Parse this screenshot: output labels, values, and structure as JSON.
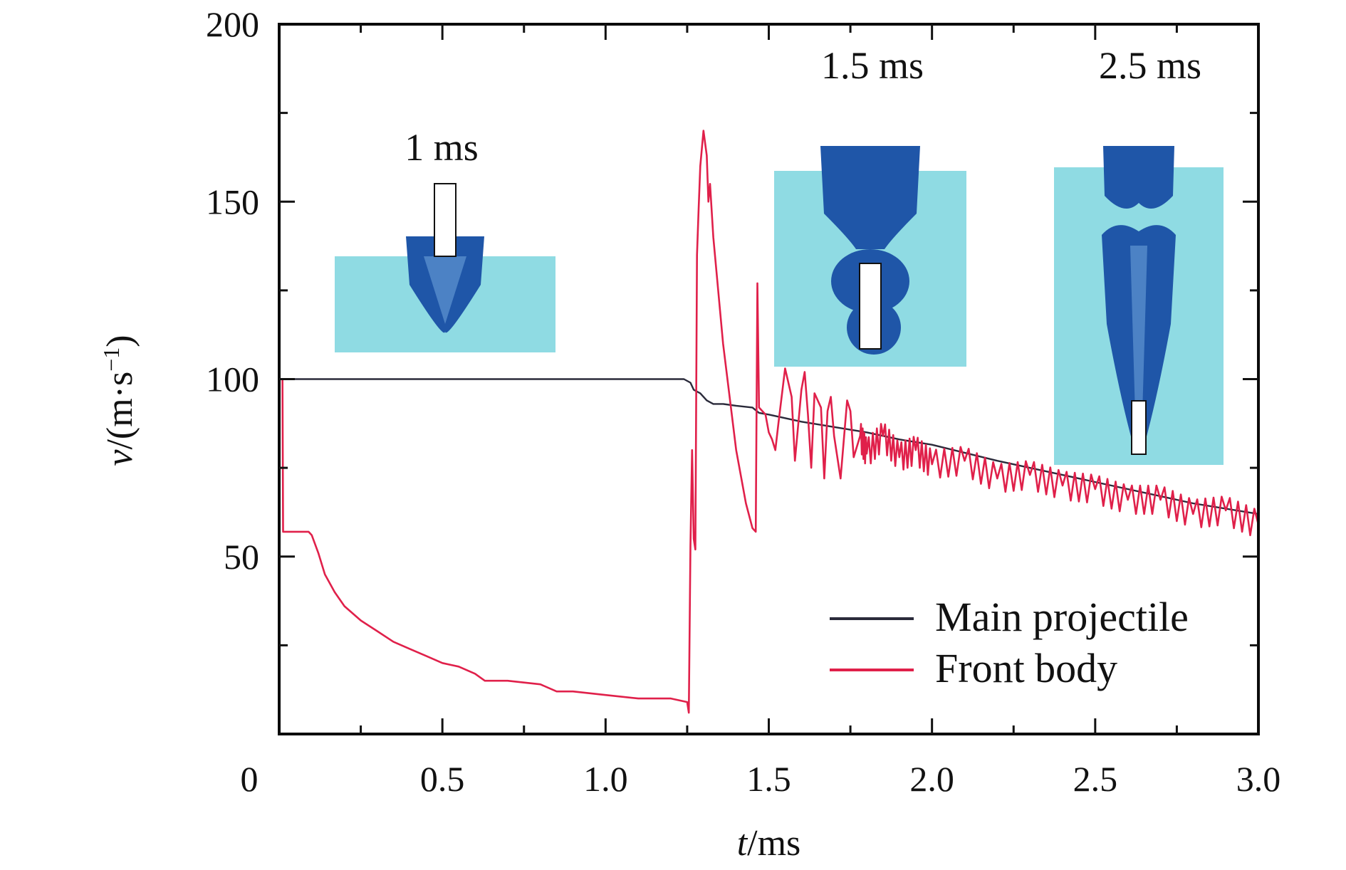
{
  "chart_data": {
    "type": "line",
    "title": "",
    "xlabel_italic": "t",
    "xlabel_rest": "/ms",
    "ylabel_italic": "v",
    "ylabel_rest": "/(m·s",
    "ylabel_sup": "−1",
    "ylabel_close": ")",
    "xlim": [
      0,
      3.0
    ],
    "ylim": [
      0,
      200
    ],
    "xticks": [
      0,
      0.5,
      1.0,
      1.5,
      2.0,
      2.5,
      3.0
    ],
    "xtick_labels": [
      "0",
      "0.5",
      "1.0",
      "1.5",
      "2.0",
      "2.5",
      "3.0"
    ],
    "xminor": [
      0.25,
      0.75,
      1.25,
      1.75,
      2.25,
      2.75
    ],
    "yticks": [
      50,
      100,
      150,
      200
    ],
    "ytick_labels": [
      "50",
      "100",
      "150",
      "200"
    ],
    "yminor": [
      25,
      75,
      125,
      175
    ],
    "origin_label": "0",
    "grid": false,
    "legend": {
      "position": "bottom-right"
    },
    "series": [
      {
        "name": "Main projectile",
        "color": "#2a2a3a",
        "x": [
          0,
          1.24,
          1.26,
          1.27,
          1.29,
          1.31,
          1.33,
          1.36,
          1.4,
          1.45,
          1.47,
          1.5,
          1.55,
          1.6,
          1.7,
          1.8,
          1.9,
          2.0,
          2.2,
          2.4,
          2.6,
          2.8,
          3.0
        ],
        "y": [
          100,
          100,
          99,
          97,
          96,
          94,
          93,
          93,
          92.5,
          92,
          90.5,
          90,
          89,
          88,
          86.5,
          85,
          83,
          81.5,
          77,
          73,
          69,
          65,
          62
        ]
      },
      {
        "name": "Front body",
        "color": "#e0204a",
        "x": [
          0.01,
          0.012,
          0.015,
          0.09,
          0.1,
          0.12,
          0.14,
          0.17,
          0.2,
          0.25,
          0.3,
          0.35,
          0.4,
          0.45,
          0.5,
          0.55,
          0.6,
          0.63,
          0.7,
          0.8,
          0.85,
          0.9,
          1.0,
          1.1,
          1.2,
          1.25,
          1.255,
          1.26,
          1.265,
          1.27,
          1.275,
          1.28,
          1.285,
          1.29,
          1.3,
          1.31,
          1.315,
          1.32,
          1.33,
          1.36,
          1.4,
          1.43,
          1.45,
          1.46,
          1.465,
          1.47,
          1.49,
          1.5,
          1.51,
          1.52,
          1.53,
          1.55,
          1.57,
          1.58,
          1.6,
          1.61,
          1.62,
          1.63,
          1.64,
          1.66,
          1.67,
          1.68,
          1.69,
          1.7,
          1.72,
          1.74,
          1.75,
          1.76,
          1.78,
          1.8,
          1.85,
          1.9,
          1.95,
          2.0,
          2.1,
          2.2,
          2.3,
          2.4,
          2.5,
          2.6,
          2.7,
          2.8,
          2.9,
          3.0
        ],
        "y": [
          100,
          57,
          57,
          57,
          56,
          51,
          45,
          40,
          36,
          32,
          29,
          26,
          24,
          22,
          20,
          19,
          17,
          15,
          15,
          14,
          12,
          12,
          11,
          10,
          10,
          9,
          6,
          53,
          80,
          55,
          52,
          135,
          148,
          160,
          170,
          163,
          150,
          155,
          140,
          110,
          80,
          65,
          58,
          57,
          127,
          92,
          90,
          85,
          83,
          80,
          88,
          103,
          95,
          77,
          97,
          102,
          90,
          75,
          96,
          92,
          72,
          91,
          95,
          84,
          72,
          94,
          91,
          78,
          84,
          79,
          84,
          78,
          80,
          76,
          77,
          72,
          73,
          70,
          69,
          66,
          66,
          62,
          63,
          59
        ]
      }
    ],
    "insets": [
      {
        "label": "1 ms",
        "t_ms": 1
      },
      {
        "label": "1.5 ms",
        "t_ms": 1.5
      },
      {
        "label": "2.5 ms",
        "t_ms": 2.5
      }
    ],
    "colors": {
      "water": "#8fdbe3",
      "cavity_dark": "#1f56a8",
      "cavity_light": "#6aa0d8"
    }
  }
}
